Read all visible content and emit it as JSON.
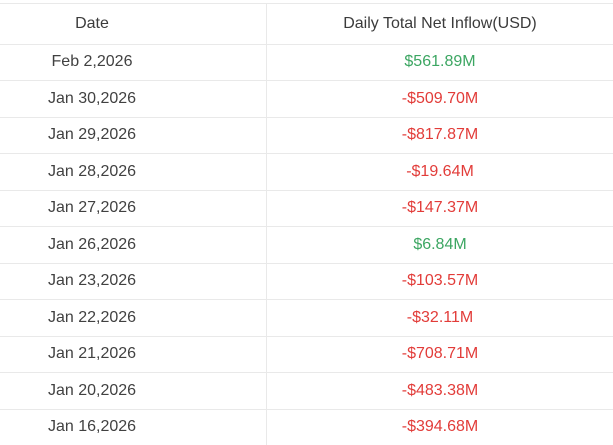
{
  "colors": {
    "positive": "#3ca662",
    "negative": "#e23c39",
    "text": "#414141",
    "header_text": "#3b3b3b",
    "border": "#e9e9e9",
    "background": "#ffffff"
  },
  "table": {
    "columns": [
      "Date",
      "Daily Total Net Inflow(USD)"
    ],
    "rows": [
      {
        "date": "Feb 2,2026",
        "inflow": "$561.89M",
        "direction": "positive"
      },
      {
        "date": "Jan 30,2026",
        "inflow": "-$509.70M",
        "direction": "negative"
      },
      {
        "date": "Jan 29,2026",
        "inflow": "-$817.87M",
        "direction": "negative"
      },
      {
        "date": "Jan 28,2026",
        "inflow": "-$19.64M",
        "direction": "negative"
      },
      {
        "date": "Jan 27,2026",
        "inflow": "-$147.37M",
        "direction": "negative"
      },
      {
        "date": "Jan 26,2026",
        "inflow": "$6.84M",
        "direction": "positive"
      },
      {
        "date": "Jan 23,2026",
        "inflow": "-$103.57M",
        "direction": "negative"
      },
      {
        "date": "Jan 22,2026",
        "inflow": "-$32.11M",
        "direction": "negative"
      },
      {
        "date": "Jan 21,2026",
        "inflow": "-$708.71M",
        "direction": "negative"
      },
      {
        "date": "Jan 20,2026",
        "inflow": "-$483.38M",
        "direction": "negative"
      },
      {
        "date": "Jan 16,2026",
        "inflow": "-$394.68M",
        "direction": "negative"
      }
    ]
  },
  "chart_data": {
    "type": "table",
    "title": "",
    "columns": [
      "Date",
      "Daily Total Net Inflow(USD)"
    ],
    "rows": [
      [
        "Feb 2,2026",
        "$561.89M"
      ],
      [
        "Jan 30,2026",
        "-$509.70M"
      ],
      [
        "Jan 29,2026",
        "-$817.87M"
      ],
      [
        "Jan 28,2026",
        "-$19.64M"
      ],
      [
        "Jan 27,2026",
        "-$147.37M"
      ],
      [
        "Jan 26,2026",
        "$6.84M"
      ],
      [
        "Jan 23,2026",
        "-$103.57M"
      ],
      [
        "Jan 22,2026",
        "-$32.11M"
      ],
      [
        "Jan 21,2026",
        "-$708.71M"
      ],
      [
        "Jan 20,2026",
        "-$483.38M"
      ],
      [
        "Jan 16,2026",
        "-$394.68M"
      ]
    ],
    "values_usd_millions": [
      561.89,
      -509.7,
      -817.87,
      -19.64,
      -147.37,
      6.84,
      -103.57,
      -32.11,
      -708.71,
      -483.38,
      -394.68
    ],
    "value_color_rule": "green when positive, red when negative"
  }
}
